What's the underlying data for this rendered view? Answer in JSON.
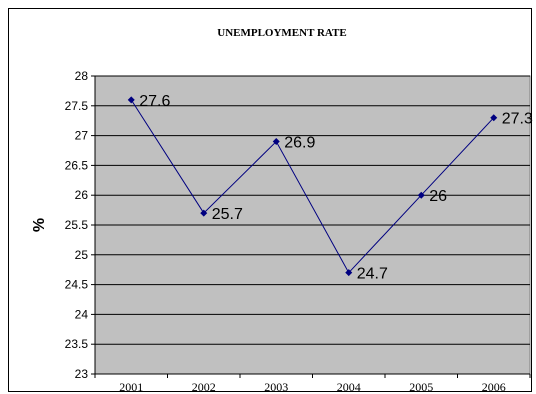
{
  "chart_data": {
    "type": "line",
    "title": "UNEMPLOYMENT RATE",
    "xlabel": "",
    "ylabel": "%",
    "categories": [
      "2001",
      "2002",
      "2003",
      "2004",
      "2005",
      "2006"
    ],
    "series": [
      {
        "values": [
          27.6,
          25.7,
          26.9,
          24.7,
          26,
          27.3
        ],
        "data_labels": [
          "27.6",
          "25.7",
          "26.9",
          "24.7",
          "26",
          "27.3"
        ]
      }
    ],
    "ylim": [
      23,
      28
    ],
    "yticks": [
      23,
      23.5,
      24,
      24.5,
      25,
      25.5,
      26,
      26.5,
      27,
      27.5,
      28
    ],
    "ytick_labels": [
      "23",
      "23.5",
      "24",
      "24.5",
      "25",
      "25.5",
      "26",
      "26.5",
      "27",
      "27.5",
      "28"
    ],
    "grid": true,
    "legend": "none",
    "colors": {
      "plot_background": "#c0c0c0",
      "line": "#000080",
      "gridline": "#000000"
    }
  }
}
